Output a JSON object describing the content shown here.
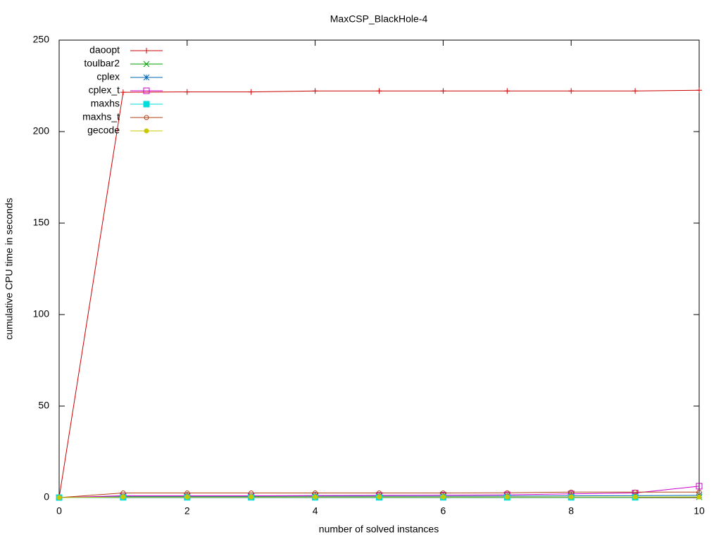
{
  "chart_data": {
    "type": "line",
    "title": "MaxCSP_BlackHole-4",
    "x_label": "number of solved instances",
    "y_label": "cumulative CPU time in seconds",
    "x": [
      0,
      1,
      2,
      3,
      4,
      5,
      6,
      7,
      8,
      9,
      10
    ],
    "xlim": [
      0,
      10
    ],
    "xticks": [
      0,
      2,
      4,
      6,
      8,
      10
    ],
    "ylim": [
      0,
      250
    ],
    "yticks": [
      0,
      50,
      100,
      150,
      200,
      250
    ],
    "legend": "top-left",
    "series": [
      {
        "name": "daoopt",
        "color": "#cc0000",
        "marker": "plus",
        "values": [
          0,
          221.5,
          221.7,
          221.7,
          222.2,
          222.2,
          222.2,
          222.2,
          222.2,
          222.2,
          222.6
        ]
      },
      {
        "name": "toulbar2",
        "color": "#00a000",
        "marker": "cross",
        "values": [
          0,
          0.2,
          0.2,
          0.2,
          0.2,
          0.2,
          0.2,
          0.2,
          0.2,
          0.2,
          0.3
        ]
      },
      {
        "name": "cplex",
        "color": "#0066b0",
        "marker": "star",
        "values": [
          0,
          0.6,
          0.6,
          0.6,
          0.7,
          0.7,
          0.7,
          0.8,
          0.9,
          1.0,
          1.2
        ]
      },
      {
        "name": "cplex_t",
        "color": "#cc00cc",
        "marker": "open-square",
        "values": [
          0,
          1.0,
          1.0,
          1.0,
          1.1,
          1.2,
          1.3,
          1.5,
          2.0,
          2.5,
          6.2
        ]
      },
      {
        "name": "maxhs",
        "color": "#00dddd",
        "marker": "filled-square",
        "values": [
          0,
          0.1,
          0.1,
          0.1,
          0.1,
          0.1,
          0.1,
          0.1,
          0.1,
          0.1,
          null
        ]
      },
      {
        "name": "maxhs_t",
        "color": "#b04010",
        "marker": "open-circle",
        "values": [
          0,
          2.5,
          2.5,
          2.5,
          2.5,
          2.5,
          2.5,
          2.6,
          3.0,
          3.0,
          3.0
        ]
      },
      {
        "name": "gecode",
        "color": "#c8c800",
        "marker": "filled-circle",
        "values": [
          0,
          0.3,
          0.3,
          0.3,
          0.3,
          0.3,
          0.3,
          0.3,
          0.3,
          0.3,
          0.3
        ]
      }
    ]
  }
}
